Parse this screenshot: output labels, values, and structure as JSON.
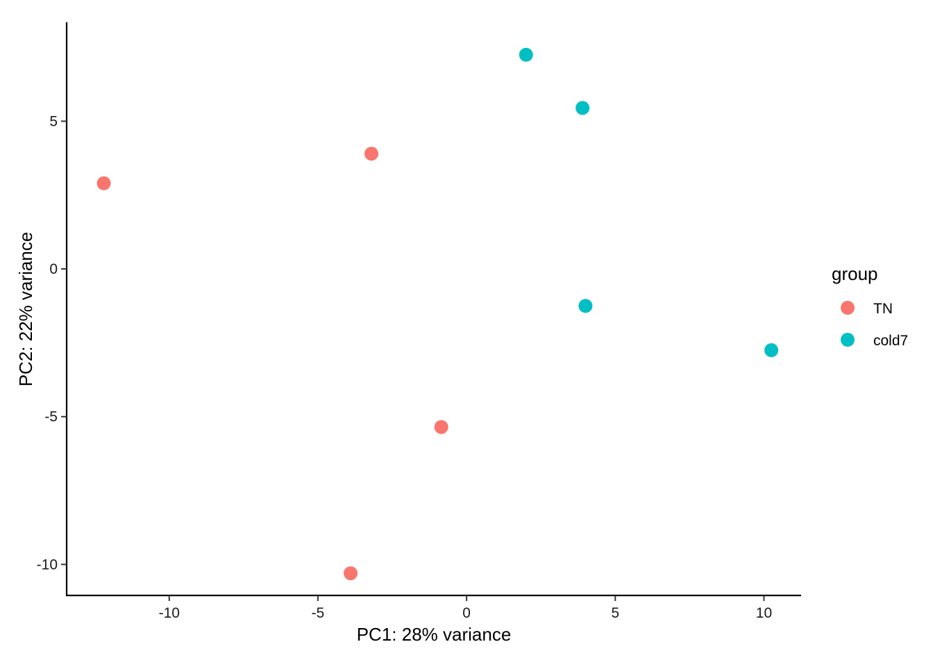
{
  "chart_data": {
    "type": "scatter",
    "title": "",
    "xlabel": "PC1: 28% variance",
    "ylabel": "PC2: 22% variance",
    "xlim": [
      -13.45,
      11.25
    ],
    "ylim": [
      -11.05,
      8.35
    ],
    "xticks": [
      -10,
      -5,
      0,
      5,
      10
    ],
    "yticks": [
      5,
      0,
      -5,
      -10
    ],
    "xtick_labels": [
      "-10",
      "-5",
      "0",
      "5",
      "10"
    ],
    "ytick_labels": [
      "5",
      "0",
      "-5",
      "-10"
    ],
    "grid": false,
    "legend": {
      "title": "group",
      "placement": "right",
      "entries": [
        "TN",
        "cold7"
      ]
    },
    "series": [
      {
        "name": "TN",
        "color": "#F8766D",
        "points": [
          {
            "x": -12.2,
            "y": 2.9
          },
          {
            "x": -3.2,
            "y": 3.9
          },
          {
            "x": -0.85,
            "y": -5.35
          },
          {
            "x": -3.9,
            "y": -10.3
          }
        ]
      },
      {
        "name": "cold7",
        "color": "#00BFC4",
        "points": [
          {
            "x": 2.0,
            "y": 7.25
          },
          {
            "x": 3.9,
            "y": 5.45
          },
          {
            "x": 4.0,
            "y": -1.25
          },
          {
            "x": 10.25,
            "y": -2.75
          }
        ]
      }
    ]
  }
}
